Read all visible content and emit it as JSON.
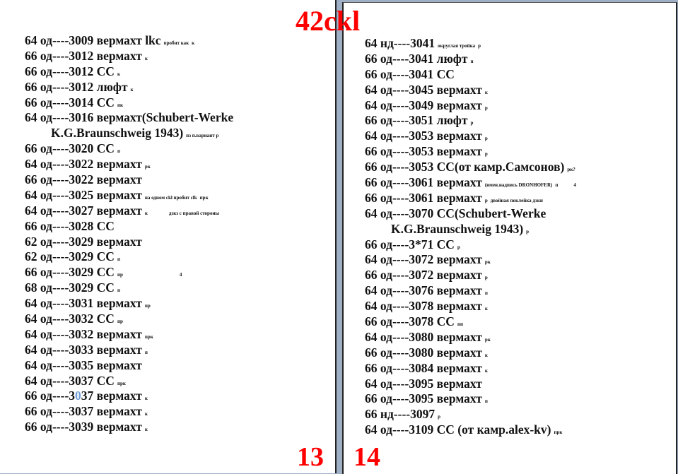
{
  "title": "42ckl",
  "colors": {
    "title": "#ff0000",
    "highlight_digit": "#6f9fd6"
  },
  "left_page": {
    "page_number": "13",
    "rows": [
      {
        "segs": [
          {
            "t": "64 од----3009 вермахт"
          }
        ],
        "note": "пробит как",
        "tail": " lkc",
        "note_b": "к"
      },
      {
        "segs": [
          {
            "t": "66 од----3012 вермахт"
          }
        ],
        "note": "к"
      },
      {
        "segs": [
          {
            "t": "66 од----3012 СС"
          }
        ],
        "note": "к"
      },
      {
        "segs": [
          {
            "t": "66 од----3012 люфт"
          }
        ],
        "note": "к"
      },
      {
        "segs": [
          {
            "t": "66 од----3014 СС"
          }
        ],
        "note": "пк"
      },
      {
        "segs": [
          {
            "t": "64 од----3016 вермахт(Schubert-Werke"
          }
        ]
      },
      {
        "cont": true,
        "segs": [
          {
            "t": "K.G.Braunschweig 1943)"
          }
        ],
        "note": "пз п.вариант р"
      },
      {
        "segs": [
          {
            "t": "66 од----3020 СС"
          }
        ],
        "note": "п"
      },
      {
        "segs": [
          {
            "t": "64 од----3022 вермахт"
          }
        ],
        "note": "рк"
      },
      {
        "segs": [
          {
            "t": "66 од----3022 вермахт"
          }
        ]
      },
      {
        "segs": [
          {
            "t": "64 од----3025 вермахт"
          }
        ],
        "note_mid": "на одном ckl пробит clk",
        "note": "прк"
      },
      {
        "segs": [
          {
            "t": "64 од----3027 вермахт"
          }
        ],
        "note": "к",
        "note2": "дзкз с правой стороны",
        "note2_gap": 30
      },
      {
        "segs": [
          {
            "t": "66 од----3028 СС"
          }
        ]
      },
      {
        "segs": [
          {
            "t": "62 од----3029 вермахт"
          }
        ]
      },
      {
        "segs": [
          {
            "t": "62 од----3029 СС"
          }
        ],
        "note": "п"
      },
      {
        "segs": [
          {
            "t": "66 од----3029 СС"
          }
        ],
        "note": "пр",
        "note2": "4",
        "note2_gap": 80
      },
      {
        "segs": [
          {
            "t": "68 од----3029 СС"
          }
        ],
        "note": "п"
      },
      {
        "segs": [
          {
            "t": "64 од----3031 вермахт"
          }
        ],
        "note": "пр"
      },
      {
        "segs": [
          {
            "t": "64 од----3032 СС"
          }
        ],
        "note": "пр"
      },
      {
        "segs": [
          {
            "t": "64 од----3032 вермахт"
          }
        ],
        "note": "прк"
      },
      {
        "segs": [
          {
            "t": "64 од----3033 вермахт"
          }
        ],
        "note": "п"
      },
      {
        "segs": [
          {
            "t": "64 од----3035 вермахт"
          }
        ]
      },
      {
        "segs": [
          {
            "t": "64 од----3037 СС"
          }
        ],
        "note": "прк"
      },
      {
        "segs": [
          {
            "t": "66 од----3"
          },
          {
            "t": "0",
            "blue": true
          },
          {
            "t": "37 вермахт"
          }
        ],
        "note": "к"
      },
      {
        "segs": [
          {
            "t": "66 од----3037 вермахт"
          }
        ],
        "note": "к"
      },
      {
        "segs": [
          {
            "t": "66 од----3039 вермахт"
          }
        ],
        "note": "к"
      }
    ]
  },
  "right_page": {
    "page_number": "14",
    "rows": [
      {
        "segs": [
          {
            "t": "64 нд----3041"
          }
        ],
        "note_mid": "округлая тройка",
        "note": "р"
      },
      {
        "segs": [
          {
            "t": "66 од----3041 люфт"
          }
        ],
        "note": "п"
      },
      {
        "segs": [
          {
            "t": "66 од----3041 СС"
          }
        ]
      },
      {
        "segs": [
          {
            "t": "64 од----3045 вермахт"
          }
        ],
        "note": "к"
      },
      {
        "segs": [
          {
            "t": "64 од----3049 вермахт"
          }
        ],
        "note": "р"
      },
      {
        "segs": [
          {
            "t": "66 од----3051 люфт"
          }
        ],
        "note": "р"
      },
      {
        "segs": [
          {
            "t": "64 од----3053 вермахт"
          }
        ],
        "note": "р"
      },
      {
        "segs": [
          {
            "t": "66 од----3053 вермахт"
          }
        ],
        "note": "р"
      },
      {
        "segs": [
          {
            "t": "66 од----3053 СС(от камр.Самсонов)"
          }
        ],
        "note": "рк?"
      },
      {
        "segs": [
          {
            "t": "66 од----3061 вермахт"
          }
        ],
        "note_mid": "(имен.надпись DRONHOFER)",
        "note": "п",
        "note2": "4",
        "note2_gap": 22
      },
      {
        "segs": [
          {
            "t": "66 од----3061 вермахт"
          }
        ],
        "note": "р",
        "note2": "двойная поклейка дзкн",
        "note2_gap": 4
      },
      {
        "segs": [
          {
            "t": "64 од----3070 СС(Schubert-Werke"
          }
        ]
      },
      {
        "cont": true,
        "segs": [
          {
            "t": "K.G.Braunschweig 1943)"
          }
        ],
        "note": "р"
      },
      {
        "segs": [
          {
            "t": "66 од----3*71 СС"
          }
        ],
        "note": "р"
      },
      {
        "segs": [
          {
            "t": "64 од----3072 вермахт"
          }
        ],
        "note": "рк"
      },
      {
        "segs": [
          {
            "t": "66 од----3072 вермахт"
          }
        ],
        "note": "р"
      },
      {
        "segs": [
          {
            "t": "64 од----3076 вермахт"
          }
        ],
        "note": "п"
      },
      {
        "segs": [
          {
            "t": "64 од----3078 вермахт"
          }
        ],
        "note": "к"
      },
      {
        "segs": [
          {
            "t": "66 од----3078 СС"
          }
        ],
        "note": "пп"
      },
      {
        "segs": [
          {
            "t": "64 од----3080 вермахт"
          }
        ],
        "note": "рк"
      },
      {
        "segs": [
          {
            "t": "66 од----3080 вермахт"
          }
        ],
        "note": "к"
      },
      {
        "segs": [
          {
            "t": "66 од----3084 вермахт"
          }
        ],
        "note": "к"
      },
      {
        "segs": [
          {
            "t": "64 од----3095 вермахт"
          }
        ]
      },
      {
        "segs": [
          {
            "t": "66 од----3095 вермахт"
          }
        ],
        "note": "п"
      },
      {
        "segs": [
          {
            "t": "66 нд----3097"
          }
        ],
        "note": "р"
      },
      {
        "segs": [
          {
            "t": "64 од----3109 СС (от камр.alex-kv)"
          }
        ],
        "note": "прк"
      }
    ]
  }
}
